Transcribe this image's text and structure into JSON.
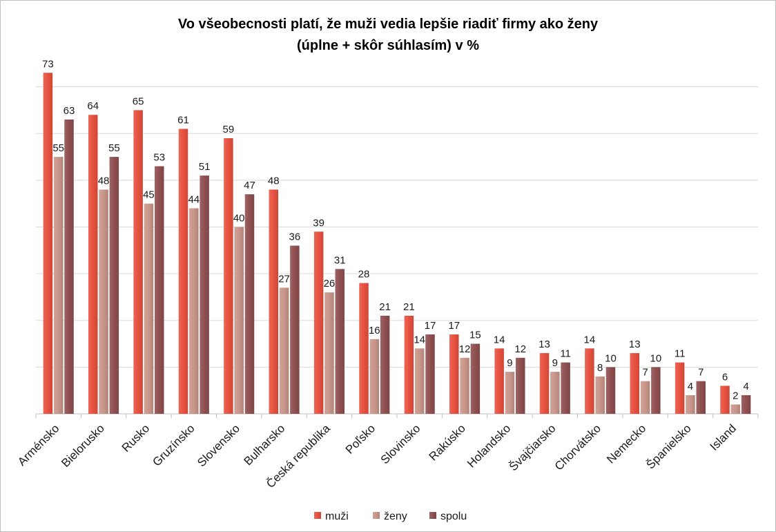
{
  "chart_data": {
    "type": "bar",
    "title": "Vo všeobecnosti platí, že muži vedia lepšie riadiť firmy ako ženy",
    "subtitle": "(úplne + skôr súhlasím) v %",
    "xlabel": "",
    "ylabel": "",
    "ylim": [
      0,
      80
    ],
    "grid": true,
    "legend_position": "bottom",
    "categories": [
      "Arménsko",
      "Bielorusko",
      "Rusko",
      "Gruzínsko",
      "Slovensko",
      "Bulharsko",
      "Česká republika",
      "Poľsko",
      "Slovinsko",
      "Rakúsko",
      "Holandsko",
      "Švajčiarsko",
      "Chorvátsko",
      "Nemecko",
      "Španielsko",
      "Island"
    ],
    "series": [
      {
        "name": "muži",
        "color": "#e8513f",
        "values": [
          73,
          64,
          65,
          61,
          59,
          48,
          39,
          28,
          21,
          17,
          14,
          13,
          14,
          13,
          11,
          6
        ]
      },
      {
        "name": "ženy",
        "color": "#c9968a",
        "values": [
          55,
          48,
          45,
          44,
          40,
          27,
          26,
          16,
          14,
          12,
          9,
          9,
          8,
          7,
          4,
          2
        ]
      },
      {
        "name": "spolu",
        "color": "#8f4f50",
        "values": [
          63,
          55,
          53,
          51,
          47,
          36,
          31,
          21,
          17,
          15,
          12,
          11,
          10,
          10,
          7,
          4
        ]
      }
    ]
  }
}
